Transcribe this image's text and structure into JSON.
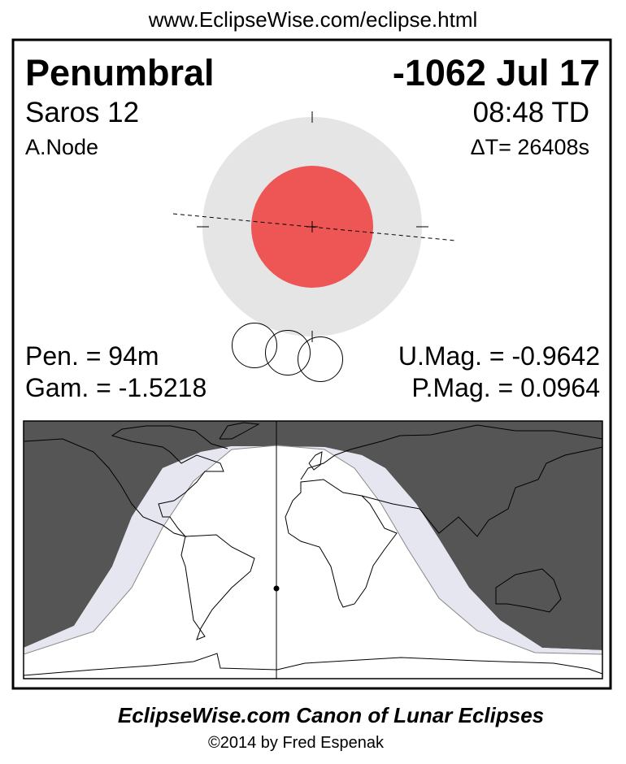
{
  "header_url": "www.EclipseWise.com/eclipse.html",
  "eclipse": {
    "type": "Penumbral",
    "date": "-1062 Jul 17",
    "saros": "Saros  12",
    "time": "08:48 TD",
    "node": "A.Node",
    "delta_t": "ΔT=  26408s",
    "pen_duration": "Pen. =  94m",
    "gamma": "Gam. = -1.5218",
    "umbral_mag": "U.Mag. = -0.9642",
    "penumbral_mag": "P.Mag. = 0.0964"
  },
  "colors": {
    "umbra": "#ee5555",
    "penumbra": "#e5e5e5",
    "night": "#555555",
    "penumbral_zone": "#e6e6f0",
    "day": "#ffffff"
  },
  "footer": {
    "title": "EclipseWise.com Canon of Lunar Eclipses",
    "copyright": "©2014 by Fred Espenak"
  }
}
